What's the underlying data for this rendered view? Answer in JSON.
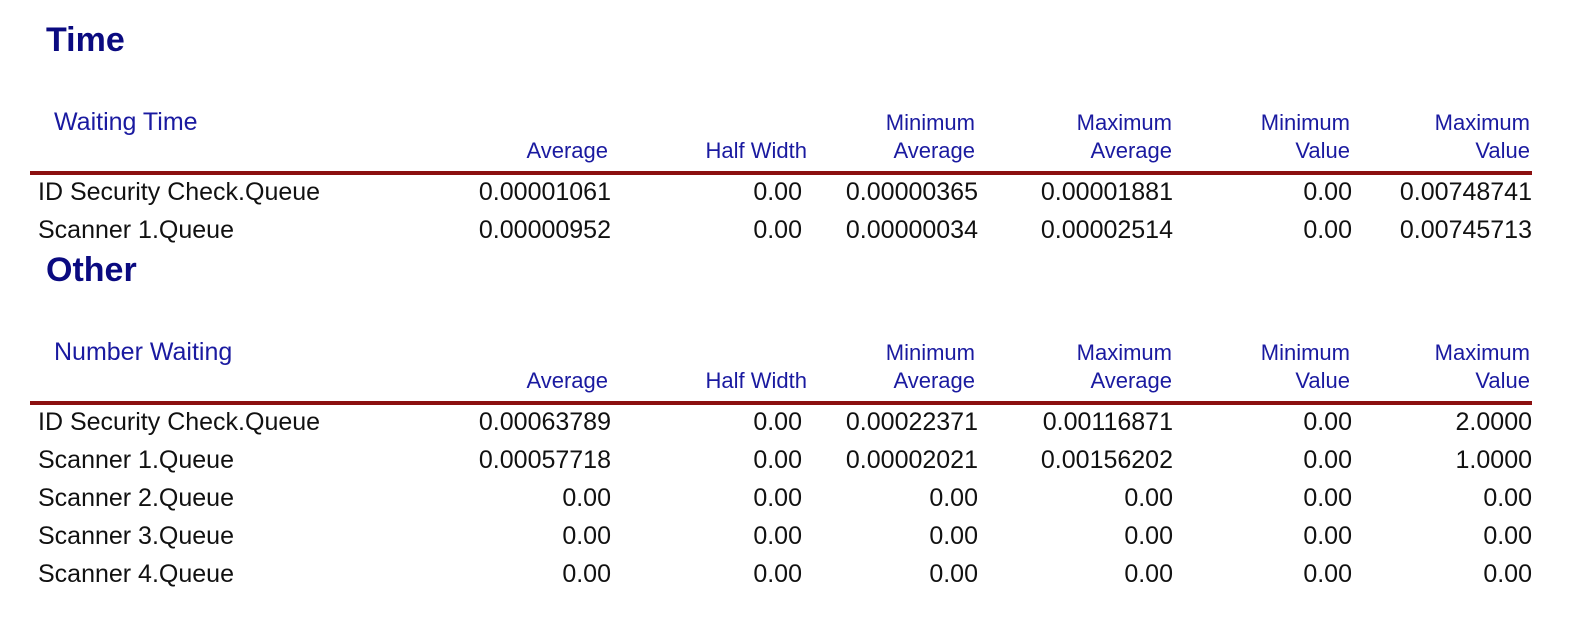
{
  "sections": [
    {
      "title": "Time",
      "group_label": "Waiting Time",
      "columns": [
        {
          "line1": "",
          "line2": "Average"
        },
        {
          "line1": "",
          "line2": "Half Width"
        },
        {
          "line1": "Minimum",
          "line2": "Average"
        },
        {
          "line1": "Maximum",
          "line2": "Average"
        },
        {
          "line1": "Minimum",
          "line2": "Value"
        },
        {
          "line1": "Maximum",
          "line2": "Value"
        }
      ],
      "rows": [
        {
          "name": "ID Security Check.Queue",
          "values": [
            "0.00001061",
            "0.00",
            "0.00000365",
            "0.00001881",
            "0.00",
            "0.00748741"
          ]
        },
        {
          "name": "Scanner 1.Queue",
          "values": [
            "0.00000952",
            "0.00",
            "0.00000034",
            "0.00002514",
            "0.00",
            "0.00745713"
          ]
        }
      ]
    },
    {
      "title": "Other",
      "group_label": "Number Waiting",
      "columns": [
        {
          "line1": "",
          "line2": "Average"
        },
        {
          "line1": "",
          "line2": "Half Width"
        },
        {
          "line1": "Minimum",
          "line2": "Average"
        },
        {
          "line1": "Maximum",
          "line2": "Average"
        },
        {
          "line1": "Minimum",
          "line2": "Value"
        },
        {
          "line1": "Maximum",
          "line2": "Value"
        }
      ],
      "rows": [
        {
          "name": "ID Security Check.Queue",
          "values": [
            "0.00063789",
            "0.00",
            "0.00022371",
            "0.00116871",
            "0.00",
            "2.0000"
          ]
        },
        {
          "name": "Scanner 1.Queue",
          "values": [
            "0.00057718",
            "0.00",
            "0.00002021",
            "0.00156202",
            "0.00",
            "1.0000"
          ]
        },
        {
          "name": "Scanner 2.Queue",
          "values": [
            "0.00",
            "0.00",
            "0.00",
            "0.00",
            "0.00",
            "0.00"
          ]
        },
        {
          "name": "Scanner 3.Queue",
          "values": [
            "0.00",
            "0.00",
            "0.00",
            "0.00",
            "0.00",
            "0.00"
          ]
        },
        {
          "name": "Scanner 4.Queue",
          "values": [
            "0.00",
            "0.00",
            "0.00",
            "0.00",
            "0.00",
            "0.00"
          ]
        }
      ]
    }
  ]
}
